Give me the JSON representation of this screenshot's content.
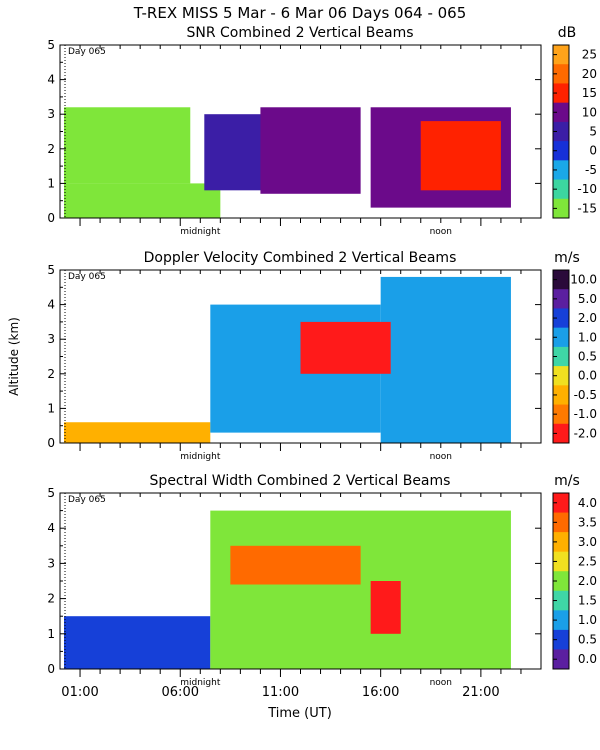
{
  "header": {
    "title": "T-REX MISS    5 Mar -  6 Mar 06 Days 064 - 065"
  },
  "chart_data": [
    {
      "type": "heatmap",
      "title": "SNR Combined 2 Vertical Beams",
      "unit": "dB",
      "ylim": [
        0,
        5
      ],
      "yticks": [
        "0",
        "1",
        "2",
        "3",
        "4",
        "5"
      ],
      "ylabel": "",
      "day_label": "Day 065",
      "markers": [
        "midnight",
        "noon"
      ],
      "colorbar_labels": [
        "25",
        "20",
        "15",
        "10",
        "5",
        "0",
        "-5",
        "-10",
        "-15"
      ],
      "colorbar_colors": [
        "#ffa31a",
        "#ff6a00",
        "#ff2200",
        "#6b0a8a",
        "#3b1ea6",
        "#1630d8",
        "#1aa8e8",
        "#3cd6a0",
        "#7fe63a"
      ],
      "regions": [
        {
          "x": [
            0.2,
            8.0
          ],
          "y": [
            0.0,
            1.0
          ],
          "value": -12
        },
        {
          "x": [
            0.2,
            6.5
          ],
          "y": [
            1.0,
            3.2
          ],
          "value": -15
        },
        {
          "x": [
            7.2,
            10.5
          ],
          "y": [
            0.8,
            3.0
          ],
          "value": 9
        },
        {
          "x": [
            10.0,
            15.0
          ],
          "y": [
            0.7,
            3.2
          ],
          "value": 12
        },
        {
          "x": [
            15.5,
            22.5
          ],
          "y": [
            0.3,
            3.2
          ],
          "value": 11
        },
        {
          "x": [
            18.0,
            22.0
          ],
          "y": [
            0.8,
            2.8
          ],
          "value": 19
        }
      ]
    },
    {
      "type": "heatmap",
      "title": "Doppler Velocity Combined 2 Vertical Beams",
      "unit": "m/s",
      "ylim": [
        0,
        5
      ],
      "yticks": [
        "0",
        "1",
        "2",
        "3",
        "4",
        "5"
      ],
      "ylabel": "Altitude (km)",
      "day_label": "Day 065",
      "markers": [
        "midnight",
        "noon"
      ],
      "colorbar_labels": [
        "10.0",
        "5.0",
        "2.0",
        "1.0",
        "0.5",
        "0.0",
        "-0.5",
        "-1.0",
        "-2.0"
      ],
      "colorbar_colors": [
        "#2a0a3a",
        "#5b1fa0",
        "#1640d8",
        "#1a9fe8",
        "#3fd6a6",
        "#f0e020",
        "#ffb000",
        "#ff7a00",
        "#ff1a1a"
      ],
      "regions": [
        {
          "x": [
            0.2,
            7.5
          ],
          "y": [
            0.0,
            0.6
          ],
          "value": -0.3
        },
        {
          "x": [
            7.5,
            16.0
          ],
          "y": [
            0.3,
            4.0
          ],
          "value": 1.2
        },
        {
          "x": [
            16.0,
            22.5
          ],
          "y": [
            0.0,
            4.8
          ],
          "value": 1.5
        },
        {
          "x": [
            12.0,
            16.5
          ],
          "y": [
            2.0,
            3.5
          ],
          "value": -1.5
        }
      ]
    },
    {
      "type": "heatmap",
      "title": "Spectral Width Combined 2 Vertical Beams",
      "unit": "m/s",
      "ylim": [
        0,
        5
      ],
      "yticks": [
        "0",
        "1",
        "2",
        "3",
        "4",
        "5"
      ],
      "ylabel": "",
      "day_label": "Day 065",
      "markers": [
        "midnight",
        "noon"
      ],
      "xlabel": "Time (UT)",
      "xticks": [
        "01:00",
        "06:00",
        "11:00",
        "16:00",
        "21:00"
      ],
      "colorbar_labels": [
        "4.0",
        "3.5",
        "3.0",
        "2.5",
        "2.0",
        "1.5",
        "1.0",
        "0.5",
        "0.0"
      ],
      "colorbar_colors": [
        "#ff1a1a",
        "#ff6a00",
        "#ffb000",
        "#f0e020",
        "#7fe63a",
        "#3fd6a6",
        "#1a9fe8",
        "#1640d8",
        "#5b1fa0"
      ],
      "regions": [
        {
          "x": [
            0.2,
            7.5
          ],
          "y": [
            0.0,
            1.5
          ],
          "value": 0.8
        },
        {
          "x": [
            7.5,
            22.5
          ],
          "y": [
            0.0,
            4.5
          ],
          "value": 2.2
        },
        {
          "x": [
            8.5,
            15.0
          ],
          "y": [
            2.4,
            3.5
          ],
          "value": 3.7
        },
        {
          "x": [
            15.5,
            17.0
          ],
          "y": [
            1.0,
            2.5
          ],
          "value": 4.0
        }
      ]
    }
  ]
}
